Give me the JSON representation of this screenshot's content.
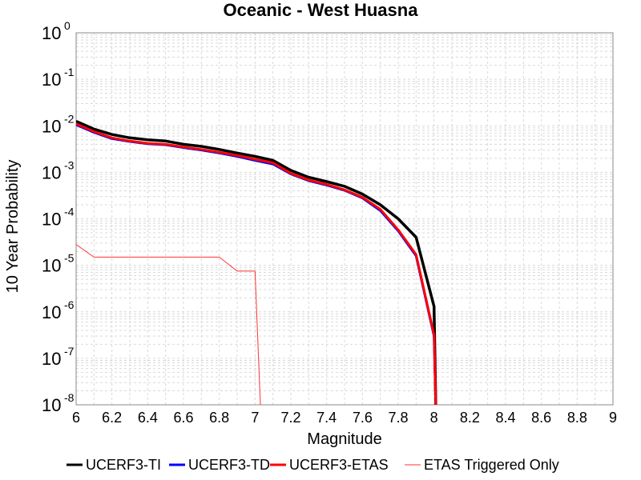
{
  "chart_data": {
    "type": "line",
    "title": "Oceanic - West Huasna",
    "xlabel": "Magnitude",
    "ylabel": "10 Year Probability",
    "xlim": [
      6,
      9
    ],
    "ylim": [
      1e-08,
      1
    ],
    "y_scale": "log",
    "grid": true,
    "legend_position": "bottom",
    "x_ticks": [
      "6",
      "6.2",
      "6.4",
      "6.6",
      "6.8",
      "7",
      "7.2",
      "7.4",
      "7.6",
      "7.8",
      "8",
      "8.2",
      "8.4",
      "8.6",
      "8.8",
      "9"
    ],
    "y_ticks": [
      {
        "base": "10",
        "exp": "0"
      },
      {
        "base": "10",
        "exp": "-1"
      },
      {
        "base": "10",
        "exp": "-2"
      },
      {
        "base": "10",
        "exp": "-3"
      },
      {
        "base": "10",
        "exp": "-4"
      },
      {
        "base": "10",
        "exp": "-5"
      },
      {
        "base": "10",
        "exp": "-6"
      },
      {
        "base": "10",
        "exp": "-7"
      },
      {
        "base": "10",
        "exp": "-8"
      }
    ],
    "series": [
      {
        "name": "UCERF3-TI",
        "color": "#000000",
        "x": [
          6.0,
          6.1,
          6.2,
          6.3,
          6.4,
          6.5,
          6.6,
          6.7,
          6.8,
          6.9,
          7.0,
          7.1,
          7.2,
          7.3,
          7.4,
          7.5,
          7.6,
          7.7,
          7.8,
          7.9,
          8.0,
          8.01
        ],
        "y": [
          0.0125,
          0.0085,
          0.0065,
          0.0055,
          0.005,
          0.0047,
          0.004,
          0.0036,
          0.0031,
          0.0026,
          0.0022,
          0.0018,
          0.0011,
          0.00078,
          0.00063,
          0.0005,
          0.00034,
          0.0002,
          0.0001,
          4e-05,
          1.3e-06,
          1e-08
        ]
      },
      {
        "name": "UCERF3-TD",
        "color": "#0000ff",
        "x": [
          6.0,
          6.1,
          6.2,
          6.3,
          6.4,
          6.5,
          6.6,
          6.7,
          6.8,
          6.9,
          7.0,
          7.1,
          7.2,
          7.3,
          7.4,
          7.5,
          7.6,
          7.7,
          7.8,
          7.9,
          8.0,
          8.01
        ],
        "y": [
          0.0105,
          0.0072,
          0.0053,
          0.0046,
          0.0041,
          0.0039,
          0.0034,
          0.003,
          0.0026,
          0.0022,
          0.0018,
          0.0015,
          0.00092,
          0.00066,
          0.00053,
          0.00041,
          0.00028,
          0.00015,
          5.5e-05,
          1.6e-05,
          3e-07,
          1e-08
        ]
      },
      {
        "name": "UCERF3-ETAS",
        "color": "#ff0000",
        "x": [
          6.0,
          6.1,
          6.2,
          6.3,
          6.4,
          6.5,
          6.6,
          6.7,
          6.8,
          6.9,
          7.0,
          7.1,
          7.2,
          7.3,
          7.4,
          7.5,
          7.6,
          7.7,
          7.8,
          7.9,
          8.0,
          8.01
        ],
        "y": [
          0.011,
          0.0075,
          0.0055,
          0.0047,
          0.0042,
          0.004,
          0.0035,
          0.0031,
          0.0027,
          0.0023,
          0.0019,
          0.0016,
          0.00095,
          0.00068,
          0.00055,
          0.00042,
          0.00029,
          0.00016,
          5.8e-05,
          1.7e-05,
          3.2e-07,
          1e-08
        ]
      },
      {
        "name": "ETAS Triggered Only",
        "color": "#ff3333",
        "x": [
          6.0,
          6.1,
          6.2,
          6.3,
          6.4,
          6.5,
          6.6,
          6.7,
          6.8,
          6.9,
          7.0,
          7.03
        ],
        "y": [
          2.8e-05,
          1.5e-05,
          1.5e-05,
          1.5e-05,
          1.5e-05,
          1.5e-05,
          1.5e-05,
          1.5e-05,
          1.5e-05,
          7.5e-06,
          7.5e-06,
          1e-08
        ]
      }
    ]
  }
}
